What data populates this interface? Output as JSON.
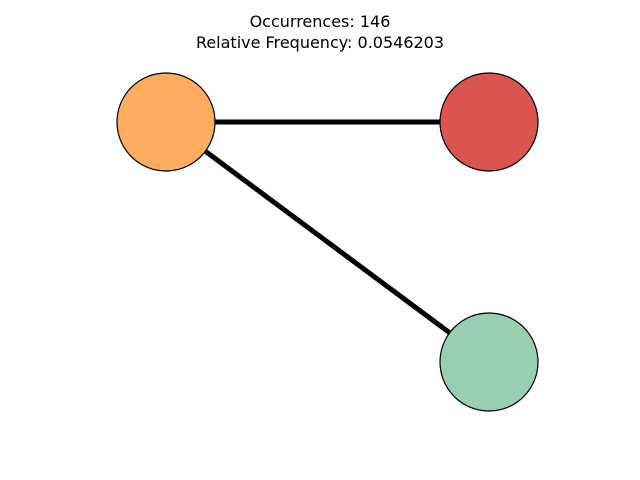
{
  "title": {
    "line1": "Occurrences: 146",
    "line2": "Relative Frequency: 0.0546203"
  },
  "graph": {
    "nodes": [
      {
        "id": "node-orange",
        "color": "#fdad5f"
      },
      {
        "id": "node-red",
        "color": "#db5550"
      },
      {
        "id": "node-green",
        "color": "#98ceb2"
      }
    ],
    "edges": [
      {
        "from": "node-orange",
        "to": "node-red"
      },
      {
        "from": "node-orange",
        "to": "node-green"
      }
    ],
    "edge_color": "#000000",
    "node_outline_color": "#000000"
  }
}
